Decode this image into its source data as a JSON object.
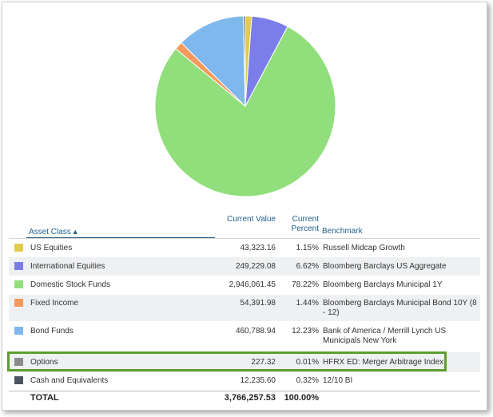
{
  "table": {
    "headers": {
      "asset_class": "Asset Class",
      "current_value": "Current Value",
      "current_percent": "Current Percent",
      "benchmark": "Benchmark"
    },
    "rows": [
      {
        "asset": "US Equities",
        "value": "43,323.16",
        "percent": "1.15%",
        "benchmark": "Russell Midcap Growth",
        "color": "#e1cc4b"
      },
      {
        "asset": "International Equities",
        "value": "249,229.08",
        "percent": "6.62%",
        "benchmark": "Bloomberg Barclays US Aggregate",
        "color": "#7b7ee8"
      },
      {
        "asset": "Domestic Stock Funds",
        "value": "2,946,061.45",
        "percent": "78.22%",
        "benchmark": "Bloomberg Barclays Municipal 1Y",
        "color": "#91df7c"
      },
      {
        "asset": "Fixed Income",
        "value": "54,391.98",
        "percent": "1.44%",
        "benchmark": "Bloomberg Barclays Municipal Bond 10Y (8 - 12)",
        "color": "#f59a5c"
      },
      {
        "asset": "Bond Funds",
        "value": "460,788.94",
        "percent": "12.23%",
        "benchmark": "Bank of America / Merrill Lynch US Municipals New York",
        "color": "#7fb8ec"
      },
      {
        "asset": "Options",
        "value": "227.32",
        "percent": "0.01%",
        "benchmark": "HFRX ED: Merger Arbitrage Index",
        "color": "#8c8c8c"
      },
      {
        "asset": "Cash and Equivalents",
        "value": "12,235.60",
        "percent": "0.32%",
        "benchmark": "12/10 BI",
        "color": "#4a5560"
      }
    ],
    "total": {
      "label": "TOTAL",
      "value": "3,766,257.53",
      "percent": "100.00%"
    }
  },
  "chart_data": {
    "type": "pie",
    "categories": [
      "US Equities",
      "International Equities",
      "Domestic Stock Funds",
      "Fixed Income",
      "Bond Funds",
      "Options",
      "Cash and Equivalents"
    ],
    "values": [
      1.15,
      6.62,
      78.22,
      1.44,
      12.23,
      0.01,
      0.32
    ],
    "colors": [
      "#e1cc4b",
      "#7b7ee8",
      "#91df7c",
      "#f59a5c",
      "#7fb8ec",
      "#8c8c8c",
      "#4a5560"
    ],
    "title": ""
  }
}
